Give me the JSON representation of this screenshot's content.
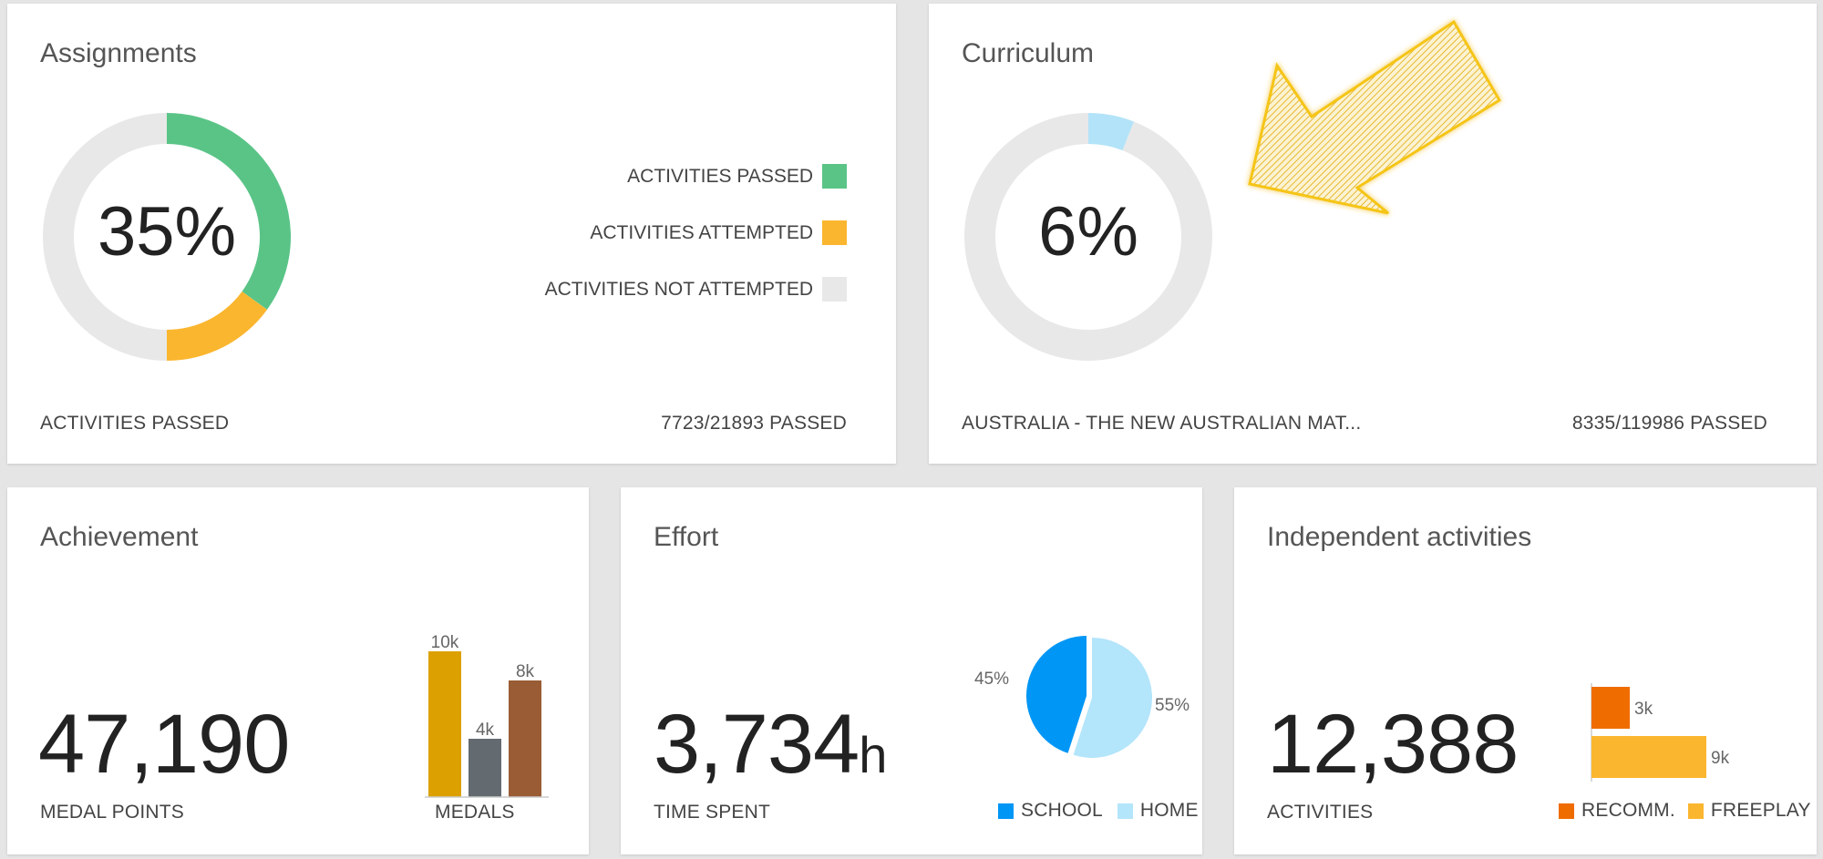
{
  "colors": {
    "passed": "#5ac487",
    "attempted": "#fbb62f",
    "not_attempted": "#e8e8e8",
    "curriculum_done": "#b3e3f8",
    "medal_gold": "#dca000",
    "medal_silver": "#636a70",
    "medal_bronze": "#995c35",
    "school": "#0096f5",
    "home": "#b3e5fb",
    "recomm": "#ef6c00",
    "freeplay": "#fbb62f",
    "arrow": "#f0c030"
  },
  "assignments": {
    "title": "Assignments",
    "percent": "35%",
    "legend": [
      {
        "label": "ACTIVITIES PASSED",
        "color_key": "passed"
      },
      {
        "label": "ACTIVITIES ATTEMPTED",
        "color_key": "attempted"
      },
      {
        "label": "ACTIVITIES NOT ATTEMPTED",
        "color_key": "not_attempted"
      }
    ],
    "footer_left": "ACTIVITIES PASSED",
    "footer_right": "7723/21893 PASSED"
  },
  "curriculum": {
    "title": "Curriculum",
    "percent": "6%",
    "footer_left": "AUSTRALIA - THE NEW AUSTRALIAN MAT...",
    "footer_right": "8335/119986 PASSED",
    "arrow_icon": "pointer-arrow-icon"
  },
  "achievement": {
    "title": "Achievement",
    "value": "47,190",
    "label": "MEDAL POINTS",
    "chart_label": "MEDALS"
  },
  "effort": {
    "title": "Effort",
    "value": "3,734",
    "unit": "h",
    "label": "TIME SPENT",
    "legend_school": "SCHOOL",
    "legend_home": "HOME"
  },
  "independent": {
    "title": "Independent activities",
    "value": "12,388",
    "label": "ACTIVITIES",
    "legend_recomm": "RECOMM.",
    "legend_freeplay": "FREEPLAY"
  },
  "chart_data": [
    {
      "type": "pie",
      "chart": "assignments-donut",
      "slices": [
        {
          "color_key": "passed",
          "value": 35
        },
        {
          "color_key": "attempted",
          "value": 15
        },
        {
          "color_key": "not_attempted",
          "value": 50
        }
      ]
    },
    {
      "type": "pie",
      "chart": "curriculum-donut",
      "slices": [
        {
          "color_key": "curriculum_done",
          "value": 6
        },
        {
          "color_key": "not_attempted",
          "value": 94
        }
      ]
    },
    {
      "type": "bar",
      "chart": "medals",
      "categories": [
        "gold",
        "silver",
        "bronze"
      ],
      "values": [
        10,
        4,
        8
      ],
      "labels": [
        "10k",
        "4k",
        "8k"
      ],
      "color_keys": [
        "medal_gold",
        "medal_silver",
        "medal_bronze"
      ]
    },
    {
      "type": "pie",
      "chart": "effort",
      "slices": [
        {
          "name": "SCHOOL",
          "value": 45,
          "label": "45%",
          "color_key": "school"
        },
        {
          "name": "HOME",
          "value": 55,
          "label": "55%",
          "color_key": "home"
        }
      ]
    },
    {
      "type": "bar",
      "chart": "independent",
      "orientation": "horizontal",
      "categories": [
        "RECOMM.",
        "FREEPLAY"
      ],
      "values": [
        3,
        9
      ],
      "labels": [
        "3k",
        "9k"
      ],
      "color_keys": [
        "recomm",
        "freeplay"
      ]
    }
  ]
}
